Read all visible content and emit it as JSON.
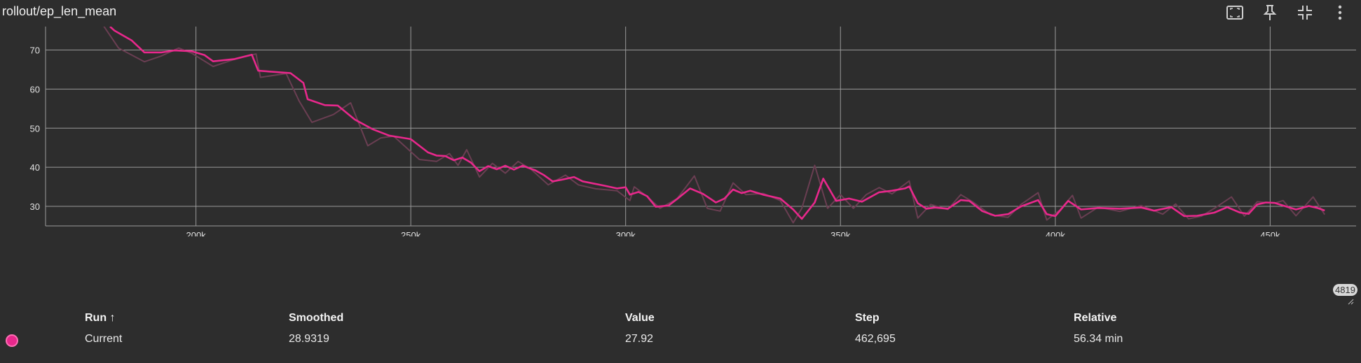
{
  "title": "rollout/ep_len_mean",
  "toolbar": {
    "icons": [
      "fit-domain-icon",
      "pin-icon",
      "collapse-icon",
      "more-vert-icon"
    ]
  },
  "step_badge": "4819",
  "colors": {
    "smoothed": "#e8288c",
    "raw": "#6a3e52",
    "grid": "#9a9a9a",
    "background": "#2d2d2d"
  },
  "chart_data": {
    "type": "line",
    "title": "rollout/ep_len_mean",
    "xlabel": "",
    "ylabel": "",
    "xlim": [
      165000,
      470000
    ],
    "ylim": [
      25,
      76
    ],
    "x_ticks": [
      200000,
      250000,
      300000,
      350000,
      400000,
      450000
    ],
    "x_tick_labels": [
      "200k",
      "250k",
      "300k",
      "350k",
      "400k",
      "450k"
    ],
    "y_ticks": [
      30,
      40,
      50,
      60,
      70
    ],
    "y_tick_labels": [
      "30",
      "40",
      "50",
      "60",
      "70"
    ],
    "grid": true,
    "series": [
      {
        "name": "Current",
        "smoothed": [
          [
            180000,
            76
          ],
          [
            181000,
            75
          ],
          [
            185000,
            72.5
          ],
          [
            188000,
            69.4
          ],
          [
            192000,
            69.4
          ],
          [
            195000,
            69.9
          ],
          [
            199000,
            69.7
          ],
          [
            202000,
            68.7
          ],
          [
            204000,
            67.1
          ],
          [
            209000,
            67.7
          ],
          [
            213000,
            68.8
          ],
          [
            214500,
            64.7
          ],
          [
            222000,
            64.1
          ],
          [
            225000,
            61.6
          ],
          [
            226000,
            57.4
          ],
          [
            230000,
            55.9
          ],
          [
            233000,
            55.8
          ],
          [
            237000,
            52.2
          ],
          [
            241000,
            49.8
          ],
          [
            245000,
            48.1
          ],
          [
            250000,
            47.2
          ],
          [
            254000,
            43.8
          ],
          [
            256000,
            43.0
          ],
          [
            258000,
            42.9
          ],
          [
            260000,
            41.8
          ],
          [
            262000,
            42.5
          ],
          [
            264000,
            41.2
          ],
          [
            266000,
            39.0
          ],
          [
            268000,
            40.3
          ],
          [
            270000,
            39.5
          ],
          [
            272000,
            40.4
          ],
          [
            274000,
            39.4
          ],
          [
            276000,
            40.4
          ],
          [
            279000,
            39.2
          ],
          [
            281000,
            38.0
          ],
          [
            283000,
            36.4
          ],
          [
            285000,
            36.8
          ],
          [
            288000,
            37.5
          ],
          [
            290000,
            36.4
          ],
          [
            295000,
            35.3
          ],
          [
            298000,
            34.6
          ],
          [
            300000,
            34.9
          ],
          [
            301000,
            33.0
          ],
          [
            303000,
            33.7
          ],
          [
            305000,
            32.6
          ],
          [
            307000,
            29.9
          ],
          [
            310000,
            30.2
          ],
          [
            312000,
            31.9
          ],
          [
            315000,
            34.6
          ],
          [
            318000,
            33.2
          ],
          [
            321000,
            31.0
          ],
          [
            323000,
            32.0
          ],
          [
            325000,
            34.3
          ],
          [
            327000,
            33.4
          ],
          [
            329000,
            34.0
          ],
          [
            332000,
            33.0
          ],
          [
            336000,
            32.0
          ],
          [
            339000,
            29.2
          ],
          [
            341000,
            26.8
          ],
          [
            344000,
            31.0
          ],
          [
            346000,
            37.1
          ],
          [
            349000,
            31.4
          ],
          [
            352000,
            32.0
          ],
          [
            355000,
            31.2
          ],
          [
            357000,
            32.4
          ],
          [
            359000,
            33.6
          ],
          [
            362000,
            34.0
          ],
          [
            365000,
            34.6
          ],
          [
            366000,
            35.1
          ],
          [
            368000,
            30.8
          ],
          [
            370000,
            29.4
          ],
          [
            372000,
            29.7
          ],
          [
            375000,
            29.4
          ],
          [
            378000,
            31.6
          ],
          [
            380000,
            31.4
          ],
          [
            383000,
            28.8
          ],
          [
            386000,
            27.6
          ],
          [
            389000,
            28.0
          ],
          [
            392000,
            30.0
          ],
          [
            396000,
            31.6
          ],
          [
            398000,
            28.0
          ],
          [
            400000,
            27.5
          ],
          [
            403000,
            31.4
          ],
          [
            406000,
            29.2
          ],
          [
            410000,
            29.6
          ],
          [
            415000,
            29.4
          ],
          [
            420000,
            29.7
          ],
          [
            423000,
            28.9
          ],
          [
            427000,
            29.8
          ],
          [
            430000,
            27.5
          ],
          [
            433000,
            27.6
          ],
          [
            437000,
            28.4
          ],
          [
            440000,
            29.8
          ],
          [
            443000,
            28.4
          ],
          [
            445000,
            28.1
          ],
          [
            447000,
            30.5
          ],
          [
            449000,
            31.0
          ],
          [
            451000,
            30.9
          ],
          [
            453000,
            30.2
          ],
          [
            456000,
            29.2
          ],
          [
            459000,
            30.1
          ],
          [
            461000,
            29.6
          ],
          [
            462695,
            28.93
          ]
        ],
        "raw": [
          [
            178000,
            77
          ],
          [
            182000,
            70.5
          ],
          [
            188000,
            67
          ],
          [
            192000,
            68.5
          ],
          [
            196000,
            70.5
          ],
          [
            199000,
            69.2
          ],
          [
            204000,
            65.8
          ],
          [
            210000,
            68
          ],
          [
            214000,
            69
          ],
          [
            215000,
            63
          ],
          [
            221000,
            64
          ],
          [
            224000,
            57
          ],
          [
            227000,
            51.5
          ],
          [
            232000,
            53.5
          ],
          [
            236000,
            56.5
          ],
          [
            240000,
            45.5
          ],
          [
            243000,
            47.5
          ],
          [
            246000,
            48
          ],
          [
            252000,
            42
          ],
          [
            256000,
            41.5
          ],
          [
            259000,
            43.5
          ],
          [
            261000,
            40.5
          ],
          [
            263000,
            44.5
          ],
          [
            266000,
            37.5
          ],
          [
            269000,
            41
          ],
          [
            272000,
            38.5
          ],
          [
            275000,
            41.5
          ],
          [
            278000,
            39.5
          ],
          [
            282000,
            35.5
          ],
          [
            286000,
            38
          ],
          [
            289000,
            35.5
          ],
          [
            293000,
            34.5
          ],
          [
            298000,
            34
          ],
          [
            301000,
            31.5
          ],
          [
            302000,
            35
          ],
          [
            305000,
            32.5
          ],
          [
            308000,
            29.5
          ],
          [
            312000,
            32
          ],
          [
            316000,
            37.8
          ],
          [
            319000,
            29.5
          ],
          [
            322000,
            28.8
          ],
          [
            325000,
            36
          ],
          [
            328000,
            33
          ],
          [
            332000,
            33.3
          ],
          [
            336000,
            31.5
          ],
          [
            339000,
            25.8
          ],
          [
            341000,
            29.5
          ],
          [
            344000,
            40.5
          ],
          [
            347000,
            29.5
          ],
          [
            350000,
            33
          ],
          [
            353000,
            29.5
          ],
          [
            356000,
            33
          ],
          [
            359000,
            34.8
          ],
          [
            362000,
            33.2
          ],
          [
            366000,
            36.5
          ],
          [
            368000,
            27
          ],
          [
            371000,
            30.5
          ],
          [
            375000,
            29.2
          ],
          [
            378000,
            33
          ],
          [
            381000,
            31
          ],
          [
            385000,
            27.8
          ],
          [
            389000,
            27.2
          ],
          [
            392000,
            30.5
          ],
          [
            396000,
            33.5
          ],
          [
            398000,
            26.5
          ],
          [
            401000,
            29
          ],
          [
            404000,
            32.8
          ],
          [
            406000,
            27
          ],
          [
            410000,
            29.8
          ],
          [
            415000,
            28.7
          ],
          [
            420000,
            30.2
          ],
          [
            425000,
            28
          ],
          [
            428000,
            30.6
          ],
          [
            431000,
            26.8
          ],
          [
            434000,
            27.5
          ],
          [
            437000,
            29.5
          ],
          [
            441000,
            32.4
          ],
          [
            444000,
            27.5
          ],
          [
            447000,
            31.2
          ],
          [
            451000,
            30.8
          ],
          [
            453000,
            31.5
          ],
          [
            456000,
            27.6
          ],
          [
            460000,
            32.4
          ],
          [
            462695,
            27.92
          ]
        ]
      }
    ]
  },
  "table": {
    "headers": {
      "run": "Run ↑",
      "smoothed": "Smoothed",
      "value": "Value",
      "step": "Step",
      "relative": "Relative"
    },
    "rows": [
      {
        "run": "Current",
        "smoothed": "28.9319",
        "value": "27.92",
        "step": "462,695",
        "relative": "56.34 min"
      }
    ]
  }
}
